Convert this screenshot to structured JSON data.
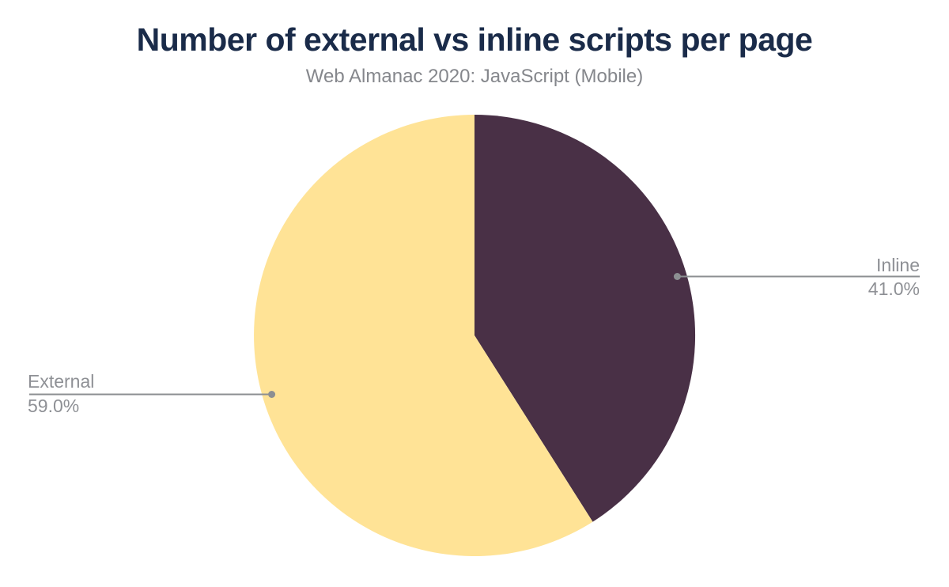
{
  "header": {
    "title": "Number of external vs inline scripts per page",
    "subtitle": "Web Almanac 2020: JavaScript (Mobile)",
    "title_color": "#1A2B49",
    "subtitle_color": "#85878C"
  },
  "chart_data": {
    "type": "pie",
    "title": "Number of external vs inline scripts per page",
    "subtitle": "Web Almanac 2020: JavaScript (Mobile)",
    "start_angle_deg": 0,
    "direction": "clockwise",
    "slices": [
      {
        "label": "Inline",
        "value": 41.0,
        "display": "41.0%",
        "color": "#493046"
      },
      {
        "label": "External",
        "value": 59.0,
        "display": "59.0%",
        "color": "#FFE396"
      }
    ],
    "leader_line_color": "#8C8F92",
    "label_color": "#8E9095",
    "legend_position": "callout-labels",
    "background": "#FFFFFF"
  }
}
